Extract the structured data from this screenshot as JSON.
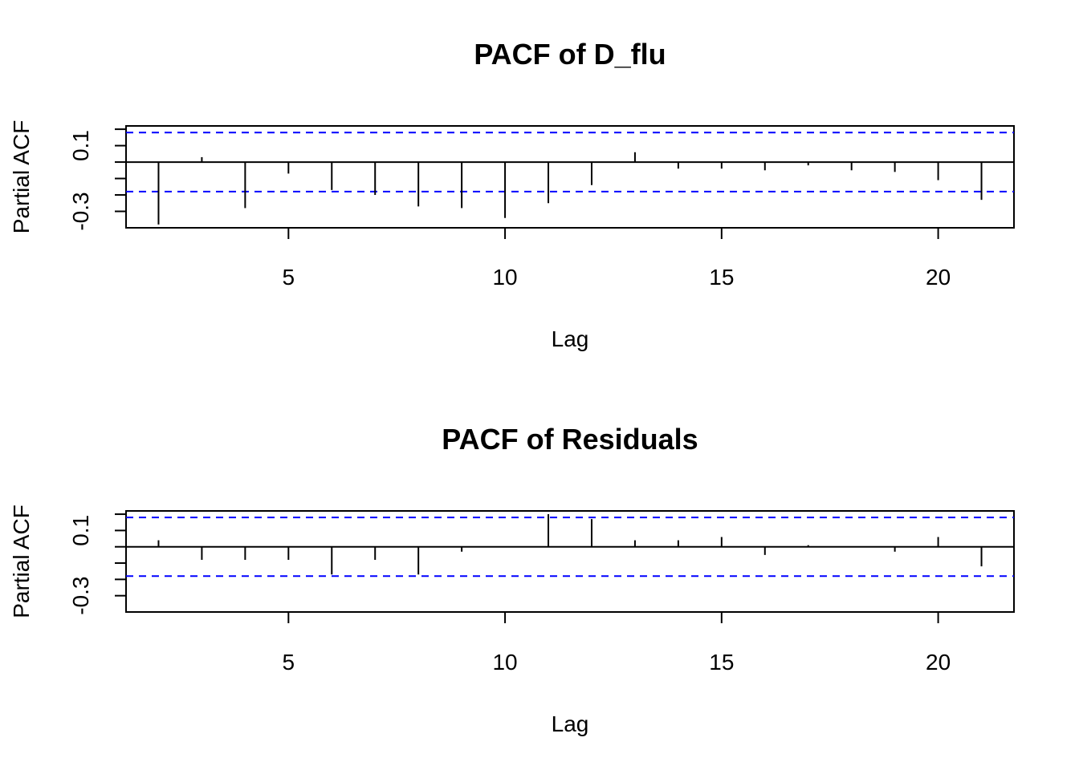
{
  "chart_data": [
    {
      "type": "bar",
      "style": "pacf-spikes",
      "title": "PACF of D_flu",
      "xlabel": "Lag",
      "ylabel": "Partial ACF",
      "x": [
        2,
        3,
        4,
        5,
        6,
        7,
        8,
        9,
        10,
        11,
        12,
        13,
        14,
        15,
        16,
        17,
        18,
        19,
        20,
        21
      ],
      "values": [
        -0.38,
        0.03,
        -0.28,
        -0.07,
        -0.17,
        -0.2,
        -0.27,
        -0.28,
        -0.34,
        -0.25,
        -0.14,
        0.06,
        -0.04,
        -0.04,
        -0.05,
        -0.02,
        -0.05,
        -0.06,
        -0.11,
        -0.23
      ],
      "confidence_bound": 0.18,
      "xlim": [
        1.25,
        21.75
      ],
      "ylim": [
        -0.4,
        0.22
      ],
      "xticks": [
        5,
        10,
        15,
        20
      ],
      "yticks": [
        -0.3,
        0.1
      ],
      "grid": false,
      "colors": {
        "spike": "#000000",
        "bound": "#0000ff",
        "frame": "#000000"
      }
    },
    {
      "type": "bar",
      "style": "pacf-spikes",
      "title": "PACF of Residuals",
      "xlabel": "Lag",
      "ylabel": "Partial ACF",
      "x": [
        2,
        3,
        4,
        5,
        6,
        7,
        8,
        9,
        10,
        11,
        12,
        13,
        14,
        15,
        16,
        17,
        18,
        19,
        20,
        21
      ],
      "values": [
        0.04,
        -0.08,
        -0.08,
        -0.08,
        -0.17,
        -0.08,
        -0.17,
        -0.03,
        0.0,
        0.2,
        0.17,
        0.04,
        0.04,
        0.06,
        -0.05,
        0.01,
        0.0,
        -0.03,
        0.06,
        -0.12
      ],
      "confidence_bound": 0.18,
      "xlim": [
        1.25,
        21.75
      ],
      "ylim": [
        -0.4,
        0.22
      ],
      "xticks": [
        5,
        10,
        15,
        20
      ],
      "yticks": [
        -0.3,
        0.1
      ],
      "grid": false,
      "colors": {
        "spike": "#000000",
        "bound": "#0000ff",
        "frame": "#000000"
      }
    }
  ]
}
